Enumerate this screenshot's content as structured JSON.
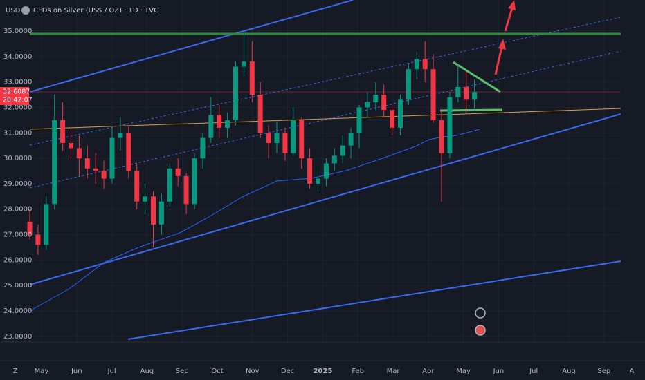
{
  "chart_data": {
    "type": "candlestick",
    "title": "CFDs on Silver (US$ / OZ) · 1D · TVC",
    "currency": "USD",
    "controls": {
      "left": "Z",
      "right": "A"
    },
    "up_color": "#089981",
    "down_color": "#f23645",
    "open": [
      27.5,
      27.0,
      26.6,
      28.2,
      31.5,
      30.6,
      30.4,
      30.0,
      29.6,
      29.5,
      29.2,
      30.8,
      31.0,
      29.5,
      28.3,
      28.5,
      27.4,
      28.3,
      29.6,
      29.3,
      28.2,
      30.0,
      30.8,
      31.7,
      31.2,
      31.5,
      33.6,
      33.8,
      32.5,
      31.0,
      30.6,
      31.0,
      30.2,
      31.5,
      30.0,
      29.0,
      29.2,
      29.8,
      30.1,
      30.5,
      31.0,
      32.0,
      32.2,
      32.5,
      31.9,
      31.2,
      32.3,
      33.5,
      33.9,
      33.5,
      31.5,
      30.2,
      32.4,
      32.8,
      32.3
    ],
    "high": [
      28.0,
      27.4,
      28.5,
      32.5,
      32.2,
      31.2,
      30.9,
      30.5,
      30.2,
      29.9,
      31.2,
      31.6,
      31.3,
      29.8,
      29.0,
      28.7,
      28.6,
      29.8,
      30.0,
      29.4,
      30.2,
      31.0,
      32.4,
      32.1,
      31.8,
      33.8,
      34.9,
      34.6,
      33.0,
      31.3,
      31.5,
      31.2,
      32.0,
      31.6,
      30.4,
      29.7,
      30.0,
      30.4,
      30.9,
      31.2,
      32.1,
      32.6,
      33.0,
      32.9,
      32.1,
      32.5,
      33.7,
      34.2,
      34.6,
      34.1,
      31.9,
      32.6,
      33.7,
      33.4,
      33.1
    ],
    "low": [
      26.8,
      26.2,
      26.4,
      28.0,
      30.3,
      30.0,
      29.3,
      29.2,
      29.0,
      28.8,
      29.0,
      30.3,
      29.2,
      28.0,
      27.8,
      26.5,
      27.0,
      28.1,
      28.9,
      27.8,
      28.0,
      29.6,
      30.6,
      30.8,
      30.8,
      31.3,
      33.2,
      32.2,
      30.8,
      30.0,
      30.2,
      29.9,
      30.1,
      29.6,
      28.8,
      28.7,
      28.9,
      29.5,
      29.8,
      30.0,
      30.4,
      31.6,
      31.9,
      31.6,
      30.9,
      30.9,
      32.1,
      33.1,
      33.0,
      31.4,
      28.3,
      30.0,
      32.2,
      31.8,
      31.9
    ],
    "close": [
      27.0,
      26.6,
      28.2,
      31.5,
      30.6,
      30.4,
      30.0,
      29.6,
      29.5,
      29.2,
      30.8,
      31.0,
      29.5,
      28.3,
      28.5,
      27.4,
      28.3,
      29.6,
      29.3,
      28.2,
      30.0,
      30.8,
      31.7,
      31.2,
      31.5,
      33.6,
      33.8,
      32.5,
      31.0,
      30.6,
      31.0,
      30.2,
      31.5,
      30.0,
      29.0,
      29.2,
      29.8,
      30.1,
      30.5,
      31.0,
      32.0,
      32.2,
      32.5,
      31.9,
      31.2,
      32.3,
      33.5,
      33.9,
      33.5,
      31.5,
      30.2,
      32.4,
      32.8,
      32.3,
      32.6
    ],
    "last_price": 32.6087,
    "countdown": "20:42:07",
    "xticks": [
      "May",
      "Jun",
      "Jul",
      "Aug",
      "Sep",
      "Oct",
      "Nov",
      "Dec",
      "2025",
      "Feb",
      "Mar",
      "Apr",
      "May",
      "Jun",
      "Jul",
      "Aug",
      "Sep"
    ],
    "ylim": [
      22.78,
      36.22
    ],
    "yticks": [
      {
        "value": 35,
        "label": "35.0000"
      },
      {
        "value": 34,
        "label": "34.0000"
      },
      {
        "value": 33,
        "label": "33.0000"
      },
      {
        "value": 32,
        "label": "32.0000"
      },
      {
        "value": 31,
        "label": "31.0000"
      },
      {
        "value": 30,
        "label": "30.0000"
      },
      {
        "value": 29,
        "label": "29.0000"
      },
      {
        "value": 28,
        "label": "28.0000"
      },
      {
        "value": 27,
        "label": "27.0000"
      },
      {
        "value": 26,
        "label": "26.0000"
      },
      {
        "value": 25,
        "label": "25.0000"
      },
      {
        "value": 24,
        "label": "24.0000"
      },
      {
        "value": 23,
        "label": "23.0000"
      }
    ],
    "grid": true
  }
}
